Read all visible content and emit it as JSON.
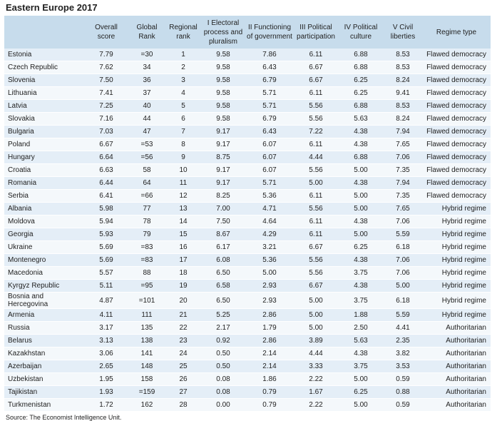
{
  "title": "Eastern Europe 2017",
  "table": {
    "headers": [
      [],
      [
        "Overall",
        "score"
      ],
      [
        "Global",
        "Rank"
      ],
      [
        "Regional",
        "rank"
      ],
      [
        "I Electoral",
        "process and",
        "pluralism"
      ],
      [
        "II Functioning",
        "of government"
      ],
      [
        "III Political",
        "participation"
      ],
      [
        "IV Political",
        "culture"
      ],
      [
        "V Civil",
        "liberties"
      ],
      [
        "Regime type"
      ]
    ],
    "rows": [
      [
        "Estonia",
        "7.79",
        "=30",
        "1",
        "9.58",
        "7.86",
        "6.11",
        "6.88",
        "8.53",
        "Flawed democracy"
      ],
      [
        "Czech Republic",
        "7.62",
        "34",
        "2",
        "9.58",
        "6.43",
        "6.67",
        "6.88",
        "8.53",
        "Flawed democracy"
      ],
      [
        "Slovenia",
        "7.50",
        "36",
        "3",
        "9.58",
        "6.79",
        "6.67",
        "6.25",
        "8.24",
        "Flawed democracy"
      ],
      [
        "Lithuania",
        "7.41",
        "37",
        "4",
        "9.58",
        "5.71",
        "6.11",
        "6.25",
        "9.41",
        "Flawed democracy"
      ],
      [
        "Latvia",
        "7.25",
        "40",
        "5",
        "9.58",
        "5.71",
        "5.56",
        "6.88",
        "8.53",
        "Flawed democracy"
      ],
      [
        "Slovakia",
        "7.16",
        "44",
        "6",
        "9.58",
        "6.79",
        "5.56",
        "5.63",
        "8.24",
        "Flawed democracy"
      ],
      [
        "Bulgaria",
        "7.03",
        "47",
        "7",
        "9.17",
        "6.43",
        "7.22",
        "4.38",
        "7.94",
        "Flawed democracy"
      ],
      [
        "Poland",
        "6.67",
        "=53",
        "8",
        "9.17",
        "6.07",
        "6.11",
        "4.38",
        "7.65",
        "Flawed democracy"
      ],
      [
        "Hungary",
        "6.64",
        "=56",
        "9",
        "8.75",
        "6.07",
        "4.44",
        "6.88",
        "7.06",
        "Flawed democracy"
      ],
      [
        "Croatia",
        "6.63",
        "58",
        "10",
        "9.17",
        "6.07",
        "5.56",
        "5.00",
        "7.35",
        "Flawed democracy"
      ],
      [
        "Romania",
        "6.44",
        "64",
        "11",
        "9.17",
        "5.71",
        "5.00",
        "4.38",
        "7.94",
        "Flawed democracy"
      ],
      [
        "Serbia",
        "6.41",
        "=66",
        "12",
        "8.25",
        "5.36",
        "6.11",
        "5.00",
        "7.35",
        "Flawed democracy"
      ],
      [
        "Albania",
        "5.98",
        "77",
        "13",
        "7.00",
        "4.71",
        "5.56",
        "5.00",
        "7.65",
        "Hybrid regime"
      ],
      [
        "Moldova",
        "5.94",
        "78",
        "14",
        "7.50",
        "4.64",
        "6.11",
        "4.38",
        "7.06",
        "Hybrid regime"
      ],
      [
        "Georgia",
        "5.93",
        "79",
        "15",
        "8.67",
        "4.29",
        "6.11",
        "5.00",
        "5.59",
        "Hybrid regime"
      ],
      [
        "Ukraine",
        "5.69",
        "=83",
        "16",
        "6.17",
        "3.21",
        "6.67",
        "6.25",
        "6.18",
        "Hybrid regime"
      ],
      [
        "Montenegro",
        "5.69",
        "=83",
        "17",
        "6.08",
        "5.36",
        "5.56",
        "4.38",
        "7.06",
        "Hybrid regime"
      ],
      [
        "Macedonia",
        "5.57",
        "88",
        "18",
        "6.50",
        "5.00",
        "5.56",
        "3.75",
        "7.06",
        "Hybrid regime"
      ],
      [
        "Kyrgyz Republic",
        "5.11",
        "=95",
        "19",
        "6.58",
        "2.93",
        "6.67",
        "4.38",
        "5.00",
        "Hybrid regime"
      ],
      [
        "Bosnia and Hercegovina",
        "4.87",
        "=101",
        "20",
        "6.50",
        "2.93",
        "5.00",
        "3.75",
        "6.18",
        "Hybrid regime"
      ],
      [
        "Armenia",
        "4.11",
        "111",
        "21",
        "5.25",
        "2.86",
        "5.00",
        "1.88",
        "5.59",
        "Hybrid regime"
      ],
      [
        "Russia",
        "3.17",
        "135",
        "22",
        "2.17",
        "1.79",
        "5.00",
        "2.50",
        "4.41",
        "Authoritarian"
      ],
      [
        "Belarus",
        "3.13",
        "138",
        "23",
        "0.92",
        "2.86",
        "3.89",
        "5.63",
        "2.35",
        "Authoritarian"
      ],
      [
        "Kazakhstan",
        "3.06",
        "141",
        "24",
        "0.50",
        "2.14",
        "4.44",
        "4.38",
        "3.82",
        "Authoritarian"
      ],
      [
        "Azerbaijan",
        "2.65",
        "148",
        "25",
        "0.50",
        "2.14",
        "3.33",
        "3.75",
        "3.53",
        "Authoritarian"
      ],
      [
        "Uzbekistan",
        "1.95",
        "158",
        "26",
        "0.08",
        "1.86",
        "2.22",
        "5.00",
        "0.59",
        "Authoritarian"
      ],
      [
        "Tajikistan",
        "1.93",
        "=159",
        "27",
        "0.08",
        "0.79",
        "1.67",
        "6.25",
        "0.88",
        "Authoritarian"
      ],
      [
        "Turkmenistan",
        "1.72",
        "162",
        "28",
        "0.00",
        "0.79",
        "2.22",
        "5.00",
        "0.59",
        "Authoritarian"
      ]
    ]
  },
  "source": "Source: The Economist Intelligence Unit."
}
